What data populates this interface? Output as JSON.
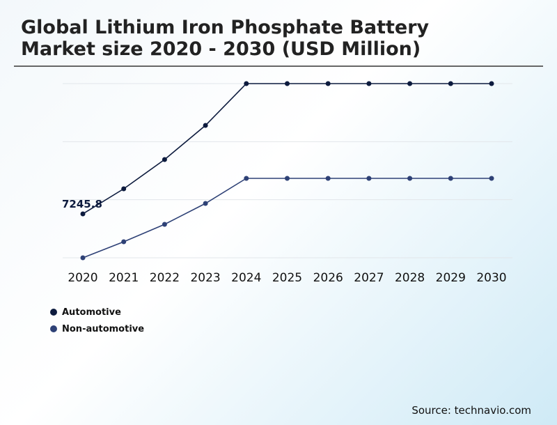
{
  "header": {
    "title_line1": "Global Lithium Iron Phosphate Battery",
    "title_line2": "Market size 2020 - 2030 (USD Million)"
  },
  "source": "Source: technavio.com",
  "chart_data": {
    "type": "line",
    "title": "Global Lithium Iron Phosphate Battery Market size 2020 - 2030 (USD Million)",
    "xlabel": "",
    "ylabel": "USD Million",
    "categories": [
      "2020",
      "2021",
      "2022",
      "2023",
      "2024",
      "2025",
      "2026",
      "2027",
      "2028",
      "2029",
      "2030"
    ],
    "ylim": [
      0,
      28750
    ],
    "grid": true,
    "legend_position": "bottom-left",
    "series": [
      {
        "name": "Automotive",
        "color": "#0d1b3e",
        "values": [
          7245.8,
          11385,
          16215,
          21850,
          28750,
          28750,
          28750,
          28750,
          28750,
          28750,
          28750
        ]
      },
      {
        "name": "Non-automotive",
        "color": "#2e4176",
        "values": [
          0,
          2645,
          5520,
          8970,
          13110,
          13110,
          13110,
          13110,
          13110,
          13110,
          13110
        ]
      }
    ],
    "annotations": [
      {
        "text": "7245.8",
        "series": "Automotive",
        "category": "2020"
      }
    ]
  }
}
